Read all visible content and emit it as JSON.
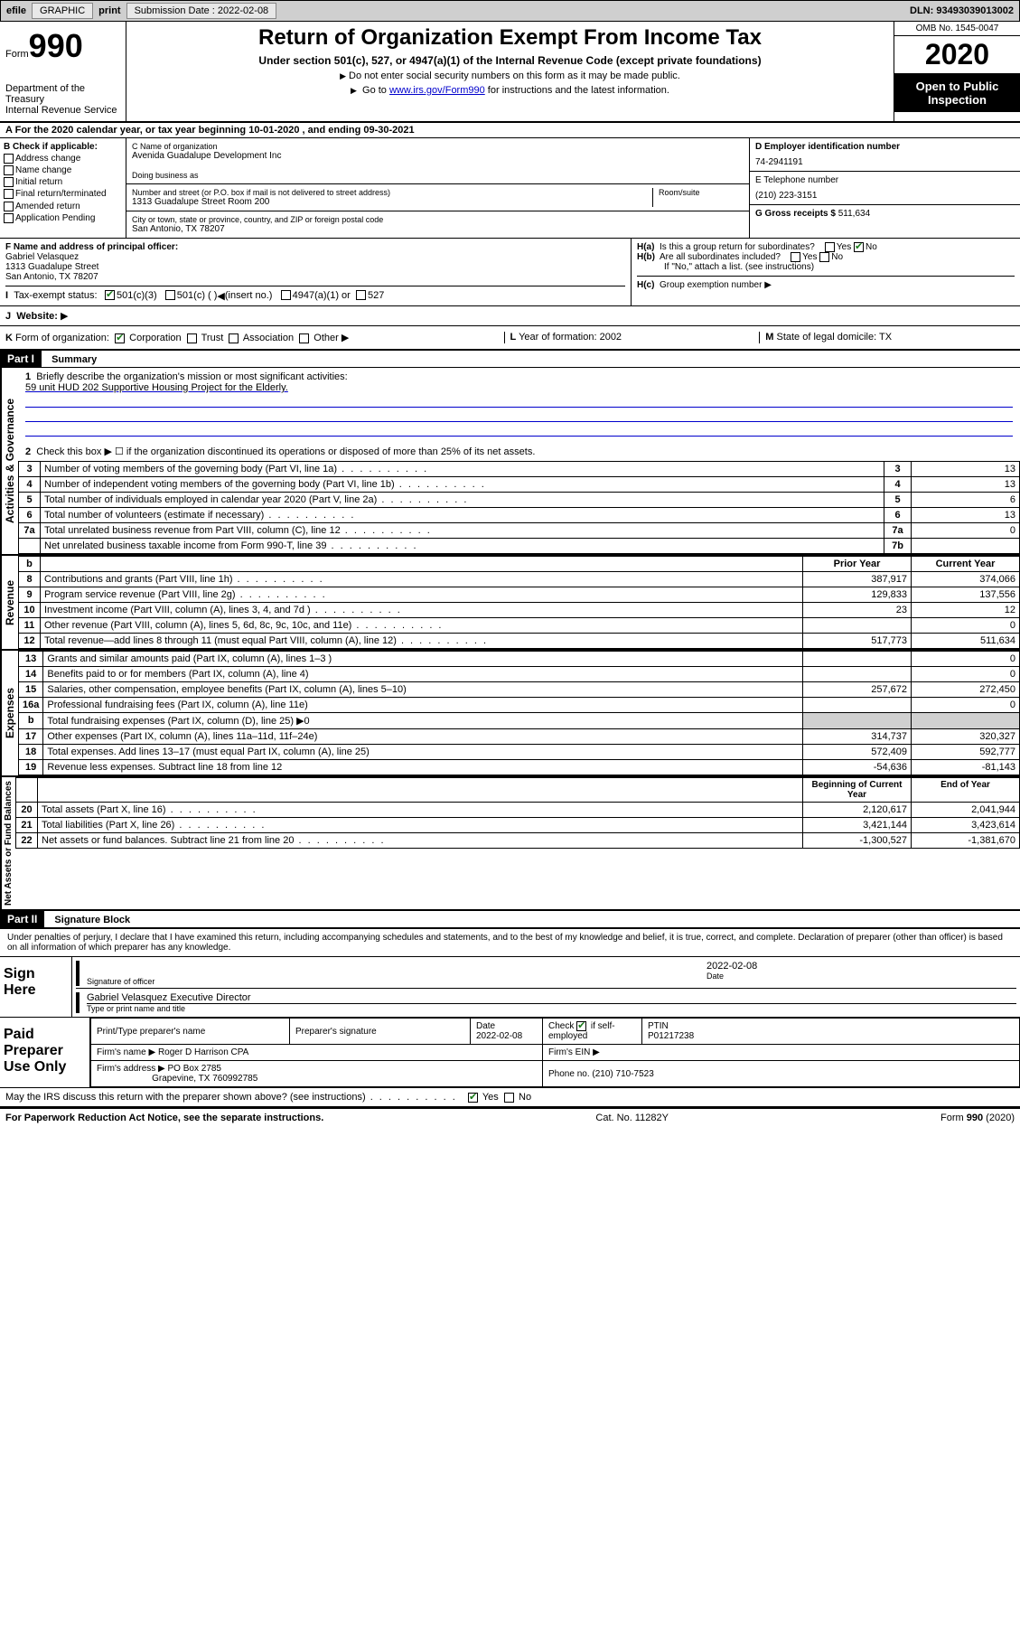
{
  "topbar": {
    "efile": "efile",
    "graphic": "GRAPHIC",
    "print": "print",
    "subdate_label": "Submission Date : 2022-02-08",
    "dln": "DLN: 93493039013002"
  },
  "header": {
    "form_word": "Form",
    "form_num": "990",
    "dept": "Department of the Treasury\nInternal Revenue Service",
    "title": "Return of Organization Exempt From Income Tax",
    "sub": "Under section 501(c), 527, or 4947(a)(1) of the Internal Revenue Code (except private foundations)",
    "note1": "Do not enter social security numbers on this form as it may be made public.",
    "note2_pre": "Go to ",
    "note2_link": "www.irs.gov/Form990",
    "note2_post": " for instructions and the latest information.",
    "omb": "OMB No. 1545-0047",
    "year": "2020",
    "insp": "Open to Public Inspection"
  },
  "period": "For the 2020 calendar year, or tax year beginning 10-01-2020    , and ending 09-30-2021",
  "blockB": {
    "label": "Check if applicable:",
    "items": [
      "Address change",
      "Name change",
      "Initial return",
      "Final return/terminated",
      "Amended return",
      "Application Pending"
    ]
  },
  "blockC": {
    "name_lbl": "C Name of organization",
    "name": "Avenida Guadalupe Development Inc",
    "dba_lbl": "Doing business as",
    "street_lbl": "Number and street (or P.O. box if mail is not delivered to street address)",
    "room_lbl": "Room/suite",
    "street": "1313 Guadalupe Street Room 200",
    "city_lbl": "City or town, state or province, country, and ZIP or foreign postal code",
    "city": "San Antonio, TX  78207"
  },
  "blockD": {
    "lbl": "D Employer identification number",
    "val": "74-2941191"
  },
  "blockE": {
    "lbl": "E Telephone number",
    "val": "(210) 223-3151"
  },
  "blockG": {
    "lbl": "G Gross receipts $",
    "val": "511,634"
  },
  "blockF": {
    "lbl": "F  Name and address of principal officer:",
    "name": "Gabriel Velasquez",
    "addr1": "1313 Guadalupe Street",
    "addr2": "San Antonio, TX  78207"
  },
  "blockH": {
    "a": "Is this a group return for subordinates?",
    "b": "Are all subordinates included?",
    "b_note": "If \"No,\" attach a list. (see instructions)",
    "c": "Group exemption number"
  },
  "blockI": {
    "lbl": "Tax-exempt status:",
    "opts": [
      "501(c)(3)",
      "501(c) (  )",
      "(insert no.)",
      "4947(a)(1) or",
      "527"
    ]
  },
  "blockJ": "Website:",
  "blockK": {
    "lbl": "Form of organization:",
    "opts": [
      "Corporation",
      "Trust",
      "Association",
      "Other"
    ]
  },
  "blockL": {
    "lbl": "Year of formation:",
    "val": "2002"
  },
  "blockM": {
    "lbl": "State of legal domicile:",
    "val": "TX"
  },
  "part1": {
    "header": "Part I",
    "title": "Summary",
    "mission_lbl": "Briefly describe the organization's mission or most significant activities:",
    "mission": "59 unit HUD 202 Supportive Housing Project for the Elderly.",
    "line2": "Check this box ▶ ☐  if the organization discontinued its operations or disposed of more than 25% of its net assets.",
    "side_labels": [
      "Activities & Governance",
      "Revenue",
      "Expenses",
      "Net Assets or Fund Balances"
    ]
  },
  "gov_rows": [
    {
      "n": "3",
      "txt": "Number of voting members of the governing body (Part VI, line 1a)",
      "lbl": "3",
      "v": "13"
    },
    {
      "n": "4",
      "txt": "Number of independent voting members of the governing body (Part VI, line 1b)",
      "lbl": "4",
      "v": "13"
    },
    {
      "n": "5",
      "txt": "Total number of individuals employed in calendar year 2020 (Part V, line 2a)",
      "lbl": "5",
      "v": "6"
    },
    {
      "n": "6",
      "txt": "Total number of volunteers (estimate if necessary)",
      "lbl": "6",
      "v": "13"
    },
    {
      "n": "7a",
      "txt": "Total unrelated business revenue from Part VIII, column (C), line 12",
      "lbl": "7a",
      "v": "0"
    },
    {
      "n": "",
      "txt": "Net unrelated business taxable income from Form 990-T, line 39",
      "lbl": "7b",
      "v": ""
    }
  ],
  "col_headers": {
    "prior": "Prior Year",
    "current": "Current Year",
    "beg": "Beginning of Current Year",
    "end": "End of Year"
  },
  "rev_rows": [
    {
      "n": "8",
      "txt": "Contributions and grants (Part VIII, line 1h)",
      "py": "387,917",
      "cy": "374,066"
    },
    {
      "n": "9",
      "txt": "Program service revenue (Part VIII, line 2g)",
      "py": "129,833",
      "cy": "137,556"
    },
    {
      "n": "10",
      "txt": "Investment income (Part VIII, column (A), lines 3, 4, and 7d )",
      "py": "23",
      "cy": "12"
    },
    {
      "n": "11",
      "txt": "Other revenue (Part VIII, column (A), lines 5, 6d, 8c, 9c, 10c, and 11e)",
      "py": "",
      "cy": "0"
    },
    {
      "n": "12",
      "txt": "Total revenue—add lines 8 through 11 (must equal Part VIII, column (A), line 12)",
      "py": "517,773",
      "cy": "511,634"
    }
  ],
  "exp_rows": [
    {
      "n": "13",
      "txt": "Grants and similar amounts paid (Part IX, column (A), lines 1–3 )",
      "py": "",
      "cy": "0"
    },
    {
      "n": "14",
      "txt": "Benefits paid to or for members (Part IX, column (A), line 4)",
      "py": "",
      "cy": "0"
    },
    {
      "n": "15",
      "txt": "Salaries, other compensation, employee benefits (Part IX, column (A), lines 5–10)",
      "py": "257,672",
      "cy": "272,450"
    },
    {
      "n": "16a",
      "txt": "Professional fundraising fees (Part IX, column (A), line 11e)",
      "py": "",
      "cy": "0"
    },
    {
      "n": "b",
      "txt": "Total fundraising expenses (Part IX, column (D), line 25) ▶0",
      "py": "GRAY",
      "cy": "GRAY"
    },
    {
      "n": "17",
      "txt": "Other expenses (Part IX, column (A), lines 11a–11d, 11f–24e)",
      "py": "314,737",
      "cy": "320,327"
    },
    {
      "n": "18",
      "txt": "Total expenses. Add lines 13–17 (must equal Part IX, column (A), line 25)",
      "py": "572,409",
      "cy": "592,777"
    },
    {
      "n": "19",
      "txt": "Revenue less expenses. Subtract line 18 from line 12",
      "py": "-54,636",
      "cy": "-81,143"
    }
  ],
  "na_rows": [
    {
      "n": "20",
      "txt": "Total assets (Part X, line 16)",
      "py": "2,120,617",
      "cy": "2,041,944"
    },
    {
      "n": "21",
      "txt": "Total liabilities (Part X, line 26)",
      "py": "3,421,144",
      "cy": "3,423,614"
    },
    {
      "n": "22",
      "txt": "Net assets or fund balances. Subtract line 21 from line 20",
      "py": "-1,300,527",
      "cy": "-1,381,670"
    }
  ],
  "part2": {
    "header": "Part II",
    "title": "Signature Block",
    "perjury": "Under penalties of perjury, I declare that I have examined this return, including accompanying schedules and statements, and to the best of my knowledge and belief, it is true, correct, and complete. Declaration of preparer (other than officer) is based on all information of which preparer has any knowledge."
  },
  "sign": {
    "here": "Sign Here",
    "sig_lbl": "Signature of officer",
    "date_lbl": "Date",
    "date": "2022-02-08",
    "name": "Gabriel Velasquez Executive Director",
    "name_lbl": "Type or print name and title"
  },
  "prep": {
    "label": "Paid Preparer Use Only",
    "h1": "Print/Type preparer's name",
    "h2": "Preparer's signature",
    "h3": "Date",
    "h3v": "2022-02-08",
    "h4": "Check ☑ if self-employed",
    "h5": "PTIN",
    "h5v": "P01217238",
    "firm_lbl": "Firm's name    ▶",
    "firm": "Roger D Harrison CPA",
    "ein_lbl": "Firm's EIN ▶",
    "addr_lbl": "Firm's address ▶",
    "addr1": "PO Box 2785",
    "addr2": "Grapevine, TX  760992785",
    "phone_lbl": "Phone no.",
    "phone": "(210) 710-7523"
  },
  "irs_discuss": "May the IRS discuss this return with the preparer shown above? (see instructions)",
  "footer": {
    "left": "For Paperwork Reduction Act Notice, see the separate instructions.",
    "mid": "Cat. No. 11282Y",
    "right": "Form 990 (2020)"
  },
  "yesno": {
    "yes": "Yes",
    "no": "No"
  }
}
